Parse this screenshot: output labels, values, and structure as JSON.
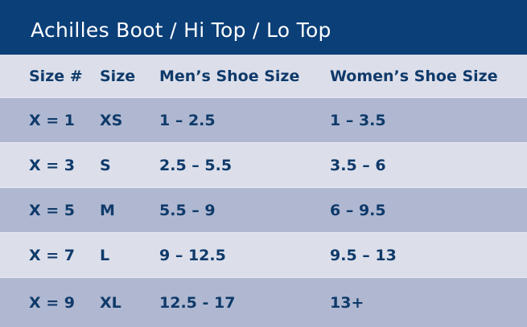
{
  "title": "Achilles Boot / Hi Top / Lo Top",
  "colors": {
    "header_bg": "#0b3f78",
    "row_light": "#dcdfea",
    "row_dark": "#b0b8d1",
    "text": "#0f3a6a"
  },
  "table": {
    "headers": [
      "Size #",
      "Size",
      "Men’s Shoe Size",
      "Women’s Shoe Size"
    ],
    "rows": [
      [
        "X = 1",
        "XS",
        "1 – 2.5",
        "1 – 3.5"
      ],
      [
        "X = 3",
        "S",
        "2.5 – 5.5",
        "3.5 – 6"
      ],
      [
        "X = 5",
        "M",
        "5.5 – 9",
        "6 – 9.5"
      ],
      [
        "X = 7",
        "L",
        "9 – 12.5",
        "9.5 – 13"
      ],
      [
        "X = 9",
        "XL",
        "12.5 - 17",
        "13+"
      ]
    ]
  }
}
